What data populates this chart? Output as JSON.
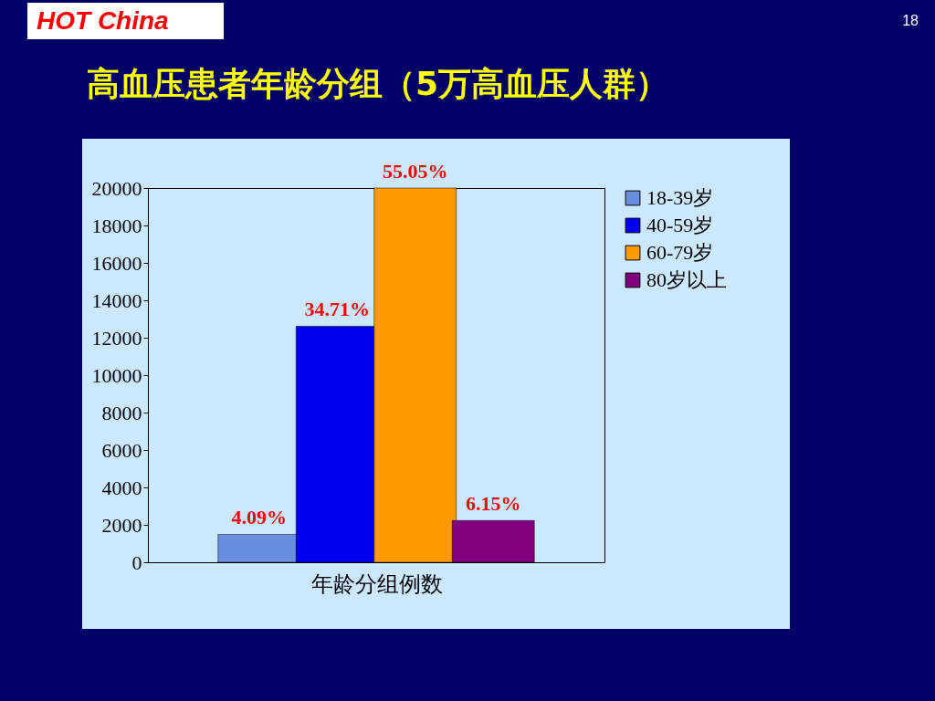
{
  "chart_data": {
    "type": "bar",
    "title": "高血压患者年龄分组（5万高血压人群）",
    "xlabel": "年龄分组例数",
    "annotations": [
      "HOT China",
      "18",
      {
        "text": "4.09%",
        "y": 1490
      },
      {
        "text": "34.71%",
        "y": 12610
      },
      {
        "text": "55.05%",
        "y": 20000
      },
      {
        "text": "6.15%",
        "y": 2230
      }
    ],
    "categories": [
      null
    ],
    "series": [
      {
        "name": "18-39岁",
        "color": "#6a8fe0",
        "values": [
          1490
        ]
      },
      {
        "name": "40-59岁",
        "color": "#0000ee",
        "values": [
          12610
        ]
      },
      {
        "name": "60-79岁",
        "color": "#ff9900",
        "values": [
          20000
        ]
      },
      {
        "name": "80岁以上",
        "color": "#800080",
        "values": [
          2230
        ]
      }
    ],
    "ylim": [
      0,
      20000
    ],
    "yticks": [
      0,
      2000,
      4000,
      6000,
      8000,
      10000,
      12000,
      14000,
      16000,
      18000,
      20000
    ],
    "grid": false,
    "legend": "right"
  }
}
